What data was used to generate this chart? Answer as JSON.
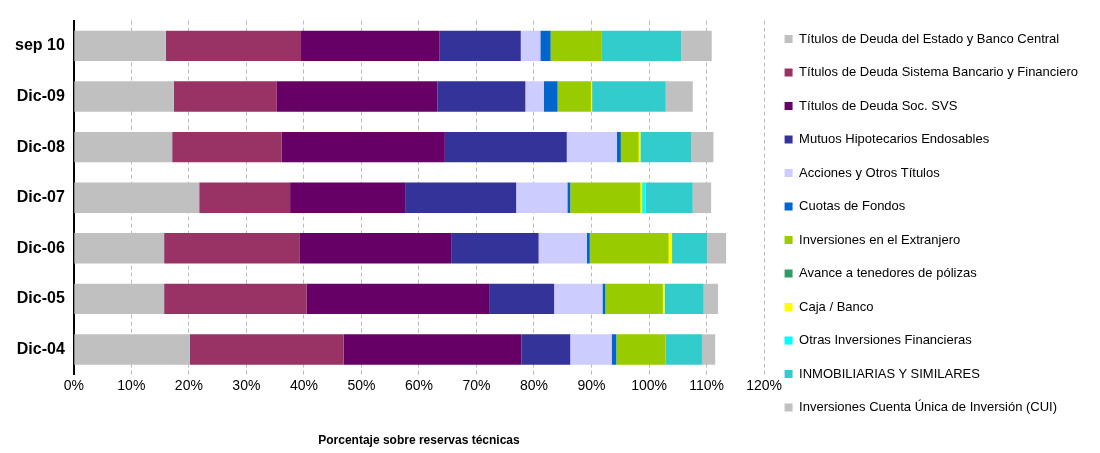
{
  "chart_data": {
    "type": "bar",
    "orientation": "horizontal",
    "stacked": true,
    "xlabel": "Porcentaje sobre reservas técnicas",
    "categories": [
      "sep 10",
      "Dic-09",
      "Dic-08",
      "Dic-07",
      "Dic-06",
      "Dic-05",
      "Dic-04"
    ],
    "series": [
      {
        "name": "Títulos de Deuda del Estado y Banco Central",
        "color": "#c0c0c0",
        "values": [
          16.0,
          17.4,
          17.1,
          21.8,
          15.7,
          15.7,
          20.2
        ]
      },
      {
        "name": "Títulos de Deuda Sistema Bancario y Financiero",
        "color": "#993366",
        "values": [
          23.5,
          17.9,
          19.0,
          15.8,
          23.5,
          24.8,
          26.7
        ]
      },
      {
        "name": "Títulos de Deuda Soc. SVS",
        "color": "#660066",
        "values": [
          24.1,
          27.9,
          28.4,
          20.0,
          26.4,
          31.7,
          30.9
        ]
      },
      {
        "name": "Mutuos Hipotecarios Endosables",
        "color": "#333399",
        "values": [
          14.1,
          15.3,
          21.2,
          19.3,
          15.2,
          11.3,
          8.5
        ]
      },
      {
        "name": "Acciones y Otros Títulos",
        "color": "#ccccff",
        "values": [
          3.4,
          3.2,
          8.7,
          8.9,
          8.4,
          8.4,
          7.2
        ]
      },
      {
        "name": "Cuotas de Fondos",
        "color": "#0066cc",
        "values": [
          1.8,
          2.4,
          0.7,
          0.5,
          0.5,
          0.5,
          0.8
        ]
      },
      {
        "name": "Inversiones en el Extranjero",
        "color": "#99cc00",
        "values": [
          8.9,
          5.8,
          3.1,
          12.2,
          13.7,
          10.0,
          8.6
        ]
      },
      {
        "name": "Avance a tenedores de pólizas",
        "color": "#339966",
        "values": [
          0,
          0,
          0,
          0,
          0,
          0,
          0
        ]
      },
      {
        "name": "Caja / Banco",
        "color": "#ffff00",
        "values": [
          0,
          0.2,
          0.3,
          0.3,
          0.6,
          0.3,
          0
        ]
      },
      {
        "name": "Otras Inversiones Financieras",
        "color": "#00ffff",
        "values": [
          0,
          0,
          0,
          0.6,
          0,
          0,
          0
        ]
      },
      {
        "name": "INMOBILIARIAS Y SIMILARES",
        "color": "#33cccc",
        "values": [
          13.8,
          12.8,
          8.8,
          8.2,
          6.1,
          6.8,
          6.3
        ]
      },
      {
        "name": "Inversiones Cuenta Única de Inversión (CUI)",
        "color": "#c0c0c0",
        "values": [
          5.3,
          4.7,
          3.9,
          3.2,
          3.3,
          2.5,
          2.3
        ]
      }
    ],
    "xlim": [
      0,
      120
    ],
    "xticks": [
      {
        "value": 0,
        "label": "0%"
      },
      {
        "value": 10,
        "label": "10%"
      },
      {
        "value": 20,
        "label": "20%"
      },
      {
        "value": 30,
        "label": "30%"
      },
      {
        "value": 40,
        "label": "40%"
      },
      {
        "value": 50,
        "label": "50%"
      },
      {
        "value": 60,
        "label": "60%"
      },
      {
        "value": 70,
        "label": "70%"
      },
      {
        "value": 80,
        "label": "80%"
      },
      {
        "value": 90,
        "label": "90%"
      },
      {
        "value": 100,
        "label": "100%"
      },
      {
        "value": 110,
        "label": "110%"
      },
      {
        "value": 120,
        "label": "120%"
      }
    ],
    "grid": "x",
    "legend": "right"
  }
}
